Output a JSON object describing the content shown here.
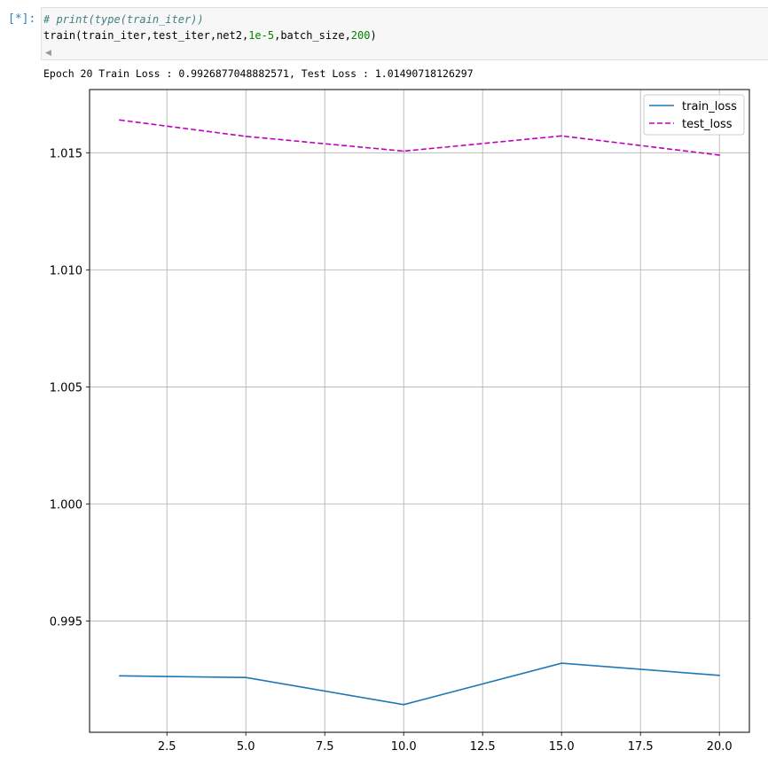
{
  "cell": {
    "prompt": "[*]:",
    "comment_line": "# print(type(train_iter))",
    "code_prefix": "train(train_iter,test_iter,net2,",
    "code_num1": "1e-5",
    "code_mid": ",batch_size,",
    "code_num2": "200",
    "code_suffix": ")",
    "scroll_icon": "triangle-left-icon"
  },
  "output": {
    "text": "Epoch 20 Train Loss : 0.9926877048882571, Test Loss : 1.01490718126297"
  },
  "colors": {
    "train": "#1f77b4",
    "test": "#bf00bf",
    "grid": "#b0b0b0"
  },
  "chart_data": {
    "type": "line",
    "title": "",
    "xlabel": "",
    "ylabel": "",
    "x": [
      1,
      5,
      10,
      15,
      20
    ],
    "xlim": [
      0.05,
      20.95
    ],
    "ylim": [
      0.99025,
      1.0177
    ],
    "xticks": [
      2.5,
      5.0,
      7.5,
      10.0,
      12.5,
      15.0,
      17.5,
      20.0
    ],
    "xtick_labels": [
      "2.5",
      "5.0",
      "7.5",
      "10.0",
      "12.5",
      "15.0",
      "17.5",
      "20.0"
    ],
    "yticks": [
      0.995,
      1.0,
      1.005,
      1.01,
      1.015
    ],
    "ytick_labels": [
      "0.995",
      "1.000",
      "1.005",
      "1.010",
      "1.015"
    ],
    "grid": true,
    "legend_position": "top-right",
    "series": [
      {
        "name": "train_loss",
        "style": "solid",
        "values": [
          0.99266,
          0.99259,
          0.99143,
          0.9932,
          0.99268
        ]
      },
      {
        "name": "test_loss",
        "style": "dashed",
        "values": [
          1.0164,
          1.0157,
          1.01507,
          1.01572,
          1.0149
        ]
      }
    ]
  }
}
